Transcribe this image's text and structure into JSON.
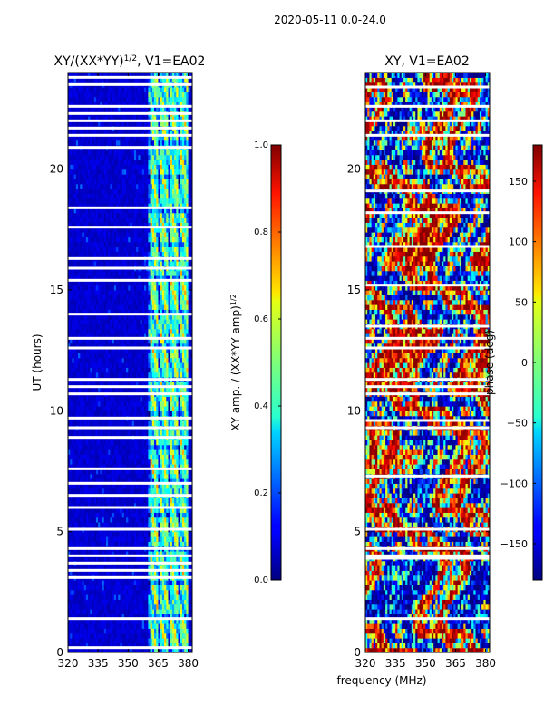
{
  "figure": {
    "suptitle": "2020-05-11 0.0-24.0",
    "shared_xlabel": "frequency (MHz)"
  },
  "chart_data": [
    {
      "type": "heatmap",
      "title": "XY/(XX*YY)",
      "title_sup": "1/2",
      "title_suffix": ", V1=EA02",
      "xlabel": "",
      "ylabel": "UT (hours)",
      "xlim": [
        320,
        382
      ],
      "ylim": [
        0,
        24
      ],
      "xticks": [
        320,
        335,
        350,
        365,
        380
      ],
      "yticks": [
        0,
        5,
        10,
        15,
        20
      ],
      "colorbar": {
        "label": "XY amp. / (XX*YY amp)",
        "label_sup": "1/2",
        "range": [
          0.0,
          1.0
        ],
        "ticks": [
          "0.0",
          "0.2",
          "0.4",
          "0.6",
          "0.8",
          "1.0"
        ],
        "colormap": "jet"
      },
      "signal_band_mhz": [
        360,
        380
      ],
      "signal_amplitude_typical": 0.45,
      "background_amplitude_typical": 0.05,
      "flagged_utc_hours": [
        0.2,
        1.4,
        3.1,
        3.4,
        3.7,
        4.0,
        4.3,
        5.1,
        6.0,
        6.5,
        7.0,
        7.6,
        8.9,
        9.3,
        9.7,
        10.7,
        11.0,
        11.3,
        12.6,
        13.0,
        14.0,
        15.4,
        15.9,
        16.3,
        17.6,
        18.4,
        20.9,
        21.4,
        21.7,
        22.0,
        22.3,
        22.6,
        23.5,
        23.8
      ]
    },
    {
      "type": "heatmap",
      "title": "XY, V1=EA02",
      "xlabel": "frequency (MHz)",
      "ylabel": "",
      "xlim": [
        320,
        382
      ],
      "ylim": [
        0,
        24
      ],
      "xticks": [
        320,
        335,
        350,
        365,
        380
      ],
      "yticks": [
        0,
        5,
        10,
        15,
        20
      ],
      "colorbar": {
        "label": "phase (deg)",
        "range": [
          -180,
          180
        ],
        "ticks": [
          "−150",
          "−100",
          "−50",
          "0",
          "50",
          "100",
          "150"
        ],
        "tick_values": [
          -150,
          -100,
          -50,
          0,
          50,
          100,
          150
        ],
        "colormap": "jet"
      },
      "flagged_utc_hours": [
        1.4,
        3.9,
        4.0,
        4.3,
        5.1,
        7.3,
        9.3,
        9.6,
        10.7,
        11.0,
        11.3,
        12.6,
        13.0,
        13.5,
        15.2,
        16.8,
        18.2,
        19.1,
        21.4,
        22.0,
        22.6,
        23.4
      ]
    }
  ]
}
